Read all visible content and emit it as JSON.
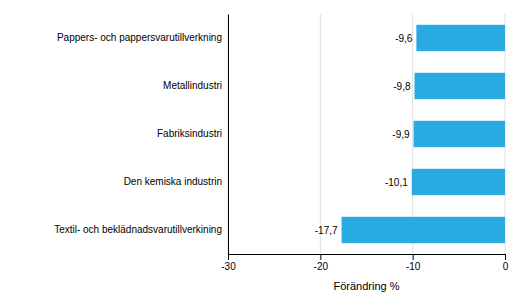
{
  "chart_data": {
    "type": "bar",
    "orientation": "horizontal",
    "categories": [
      "Textil- och beklädnadsvarutillverkining",
      "Den kemiska industrin",
      "Fabriksindustri",
      "Metallindustri",
      "Pappers- och pappersvarutillverkning"
    ],
    "values": [
      -17.7,
      -10.1,
      -9.9,
      -9.8,
      -9.6
    ],
    "value_labels": [
      "-17,7",
      "-10,1",
      "-9,9",
      "-9,8",
      "-9,6"
    ],
    "data_labels": true,
    "color": "#29ABE2",
    "xlabel": "Förändring %",
    "xlim": [
      -30,
      0
    ],
    "xticks": [
      -30,
      -20,
      -10,
      0
    ],
    "grid": true
  }
}
